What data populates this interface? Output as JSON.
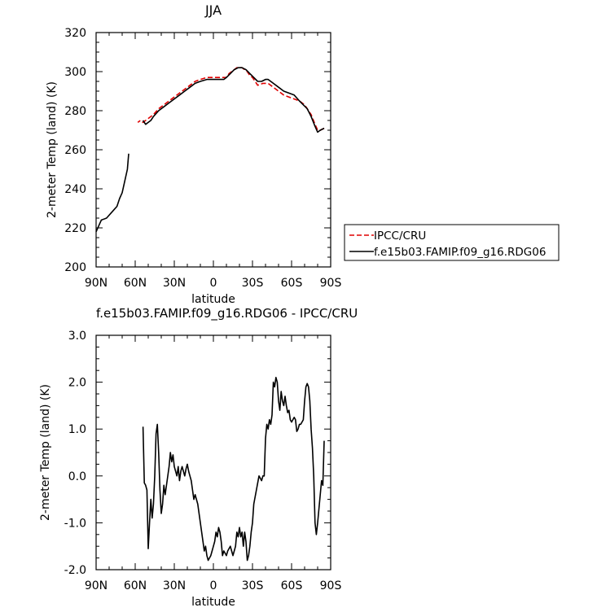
{
  "chart_data": [
    {
      "type": "line",
      "title": "JJA",
      "xlabel": "latitude",
      "ylabel": "2-meter Temp (land) (K)",
      "xlim": [
        90,
        -90
      ],
      "ylim": [
        200,
        320
      ],
      "xticks": [
        90,
        60,
        30,
        0,
        -30,
        -60,
        -90
      ],
      "xtick_labels": [
        "90N",
        "60N",
        "30N",
        "0",
        "30S",
        "60S",
        "90S"
      ],
      "yticks": [
        200,
        220,
        240,
        260,
        280,
        300,
        320
      ],
      "ytick_labels": [
        "200",
        "220",
        "240",
        "260",
        "280",
        "300",
        "320"
      ],
      "legend": {
        "placement": "outside-right"
      },
      "series": [
        {
          "name": "IPCC/CRU",
          "color": "#e00000",
          "dash": "dashed",
          "segments": [
            [
              [
                -85,
                271
              ],
              [
                -82,
                270
              ],
              [
                -80,
                270
              ],
              [
                -78,
                273
              ],
              [
                -75,
                278
              ],
              [
                -72,
                281
              ],
              [
                -70,
                283
              ],
              [
                -66,
                285
              ],
              [
                -62,
                286
              ],
              [
                -58,
                287
              ],
              [
                -54,
                288
              ],
              [
                -50,
                290
              ],
              [
                -46,
                292
              ],
              [
                -42,
                294
              ],
              [
                -38,
                294
              ],
              [
                -34,
                293
              ],
              [
                -32,
                295
              ],
              [
                -30,
                297
              ],
              [
                -28,
                298
              ],
              [
                -26,
                300
              ],
              [
                -24,
                301
              ],
              [
                -22,
                302
              ],
              [
                -20,
                302
              ],
              [
                -18,
                302
              ],
              [
                -16,
                301
              ],
              [
                -14,
                300
              ],
              [
                -12,
                299
              ],
              [
                -10,
                297
              ],
              [
                -8,
                297
              ],
              [
                -4,
                297
              ],
              [
                0,
                297
              ],
              [
                5,
                297
              ],
              [
                10,
                296
              ],
              [
                14,
                295
              ],
              [
                18,
                293
              ],
              [
                22,
                291
              ],
              [
                26,
                289
              ],
              [
                30,
                287
              ],
              [
                34,
                285
              ],
              [
                38,
                283
              ],
              [
                42,
                281
              ],
              [
                46,
                278
              ],
              [
                50,
                276
              ],
              [
                52,
                275
              ],
              [
                54,
                274
              ],
              [
                56,
                275
              ],
              [
                58,
                274
              ]
            ]
          ]
        },
        {
          "name": "f.e15b03.FAMIP.f09_g16.RDG06",
          "color": "#000000",
          "dash": "solid",
          "segments": [
            [
              [
                -85,
                271
              ],
              [
                -82,
                270
              ],
              [
                -80,
                269
              ],
              [
                -78,
                272
              ],
              [
                -75,
                277
              ],
              [
                -72,
                281
              ],
              [
                -69,
                283
              ],
              [
                -66,
                285
              ],
              [
                -62,
                288
              ],
              [
                -58,
                289
              ],
              [
                -54,
                290
              ],
              [
                -50,
                292
              ],
              [
                -46,
                294
              ],
              [
                -42,
                296
              ],
              [
                -40,
                296
              ],
              [
                -37,
                295
              ],
              [
                -34,
                295
              ],
              [
                -31,
                297
              ],
              [
                -28,
                299
              ],
              [
                -25,
                301
              ],
              [
                -22,
                302
              ],
              [
                -19,
                302
              ],
              [
                -16,
                301
              ],
              [
                -13,
                299
              ],
              [
                -10,
                297
              ],
              [
                -8,
                296
              ],
              [
                -5,
                296
              ],
              [
                0,
                296
              ],
              [
                5,
                296
              ],
              [
                10,
                295
              ],
              [
                14,
                294
              ],
              [
                18,
                292
              ],
              [
                22,
                290
              ],
              [
                26,
                288
              ],
              [
                30,
                286
              ],
              [
                34,
                284
              ],
              [
                38,
                282
              ],
              [
                42,
                280
              ],
              [
                46,
                277
              ],
              [
                48,
                275
              ],
              [
                50,
                274
              ],
              [
                52,
                273
              ],
              [
                54,
                275
              ]
            ],
            [
              [
                65,
                258
              ],
              [
                66,
                250
              ],
              [
                68,
                244
              ],
              [
                70,
                238
              ],
              [
                72,
                235
              ],
              [
                74,
                231
              ],
              [
                78,
                228
              ],
              [
                82,
                225
              ],
              [
                86,
                224
              ],
              [
                88,
                221
              ],
              [
                90,
                218
              ]
            ]
          ]
        }
      ]
    },
    {
      "type": "line",
      "title": "f.e15b03.FAMIP.f09_g16.RDG06 - IPCC/CRU",
      "xlabel": "latitude",
      "ylabel": "2-meter Temp (land) (K)",
      "xlim": [
        90,
        -90
      ],
      "ylim": [
        -2.0,
        3.0
      ],
      "xticks": [
        90,
        60,
        30,
        0,
        -30,
        -60,
        -90
      ],
      "xtick_labels": [
        "90N",
        "60N",
        "30N",
        "0",
        "30S",
        "60S",
        "90S"
      ],
      "yticks": [
        -2.0,
        -1.0,
        0.0,
        1.0,
        2.0,
        3.0
      ],
      "ytick_labels": [
        "-2.0",
        "-1.0",
        "0.0",
        "1.0",
        "2.0",
        "3.0"
      ],
      "series": [
        {
          "color": "#000000",
          "dash": "solid",
          "segments": [
            [
              [
                -85,
                0.75
              ],
              [
                -84,
                -0.2
              ],
              [
                -83,
                -0.1
              ],
              [
                -82,
                -0.4
              ],
              [
                -81,
                -0.7
              ],
              [
                -80,
                -1.0
              ],
              [
                -79,
                -1.25
              ],
              [
                -78,
                -1.0
              ],
              [
                -77,
                0.0
              ],
              [
                -76,
                0.6
              ],
              [
                -75,
                1.0
              ],
              [
                -74,
                1.6
              ],
              [
                -73,
                1.9
              ],
              [
                -72,
                1.97
              ],
              [
                -71,
                1.9
              ],
              [
                -70,
                1.6
              ],
              [
                -69,
                1.2
              ],
              [
                -68,
                1.15
              ],
              [
                -67,
                1.1
              ],
              [
                -66,
                1.1
              ],
              [
                -65,
                1.0
              ],
              [
                -64,
                0.95
              ],
              [
                -63,
                1.2
              ],
              [
                -62,
                1.25
              ],
              [
                -61,
                1.2
              ],
              [
                -60,
                1.15
              ],
              [
                -59,
                1.2
              ],
              [
                -58,
                1.4
              ],
              [
                -57,
                1.35
              ],
              [
                -56,
                1.5
              ],
              [
                -55,
                1.7
              ],
              [
                -54,
                1.5
              ],
              [
                -53,
                1.6
              ],
              [
                -52,
                1.8
              ],
              [
                -51,
                1.4
              ],
              [
                -50,
                1.6
              ],
              [
                -49,
                2.0
              ],
              [
                -48,
                2.1
              ],
              [
                -47,
                1.9
              ],
              [
                -46,
                2.0
              ],
              [
                -45,
                1.3
              ],
              [
                -44,
                1.1
              ],
              [
                -43,
                1.2
              ],
              [
                -42,
                1.0
              ],
              [
                -41,
                1.1
              ],
              [
                -40,
                0.8
              ],
              [
                -39,
                0.0
              ],
              [
                -38,
                0.0
              ],
              [
                -37,
                -0.1
              ],
              [
                -35,
                0.0
              ],
              [
                -33,
                -0.3
              ],
              [
                -31,
                -0.6
              ],
              [
                -30,
                -1.0
              ],
              [
                -29,
                -1.2
              ],
              [
                -28,
                -1.5
              ],
              [
                -27,
                -1.7
              ],
              [
                -26,
                -1.8
              ],
              [
                -25,
                -1.4
              ],
              [
                -24,
                -1.2
              ],
              [
                -23,
                -1.5
              ],
              [
                -22,
                -1.2
              ],
              [
                -21,
                -1.3
              ],
              [
                -20,
                -1.1
              ],
              [
                -19,
                -1.3
              ],
              [
                -18,
                -1.2
              ],
              [
                -17,
                -1.5
              ],
              [
                -16,
                -1.6
              ],
              [
                -15,
                -1.7
              ],
              [
                -14,
                -1.6
              ],
              [
                -13,
                -1.5
              ],
              [
                -12,
                -1.55
              ],
              [
                -11,
                -1.6
              ],
              [
                -10,
                -1.7
              ],
              [
                -9,
                -1.65
              ],
              [
                -8,
                -1.6
              ],
              [
                -7,
                -1.7
              ],
              [
                -6,
                -1.4
              ],
              [
                -5,
                -1.2
              ],
              [
                -4,
                -1.1
              ],
              [
                -3,
                -1.3
              ],
              [
                -2,
                -1.2
              ],
              [
                -1,
                -1.4
              ],
              [
                0,
                -1.5
              ],
              [
                1,
                -1.6
              ],
              [
                2,
                -1.7
              ],
              [
                3,
                -1.75
              ],
              [
                4,
                -1.8
              ],
              [
                5,
                -1.7
              ],
              [
                6,
                -1.5
              ],
              [
                7,
                -1.6
              ],
              [
                8,
                -1.4
              ],
              [
                9,
                -1.2
              ],
              [
                10,
                -1.0
              ],
              [
                11,
                -0.8
              ],
              [
                12,
                -0.6
              ],
              [
                13,
                -0.5
              ],
              [
                14,
                -0.4
              ],
              [
                15,
                -0.5
              ],
              [
                16,
                -0.3
              ],
              [
                17,
                -0.1
              ],
              [
                18,
                0.0
              ],
              [
                19,
                0.1
              ],
              [
                20,
                0.25
              ],
              [
                21,
                0.15
              ],
              [
                22,
                0.0
              ],
              [
                23,
                0.1
              ],
              [
                24,
                0.2
              ],
              [
                25,
                0.1
              ],
              [
                26,
                -0.1
              ],
              [
                27,
                0.2
              ],
              [
                28,
                0.0
              ],
              [
                29,
                0.1
              ],
              [
                30,
                0.2
              ],
              [
                31,
                0.45
              ],
              [
                32,
                0.3
              ],
              [
                33,
                0.5
              ],
              [
                34,
                0.2
              ],
              [
                35,
                0.0
              ],
              [
                36,
                -0.2
              ],
              [
                37,
                -0.4
              ],
              [
                38,
                -0.2
              ],
              [
                39,
                -0.6
              ],
              [
                40,
                -0.8
              ],
              [
                41,
                -0.3
              ],
              [
                42,
                0.5
              ],
              [
                43,
                1.1
              ],
              [
                44,
                0.9
              ],
              [
                45,
                0.0
              ],
              [
                46,
                -0.6
              ],
              [
                47,
                -0.9
              ],
              [
                48,
                -0.5
              ],
              [
                49,
                -1.0
              ],
              [
                50,
                -1.55
              ],
              [
                51,
                -0.3
              ],
              [
                52,
                -0.2
              ],
              [
                53,
                -0.15
              ],
              [
                54,
                1.05
              ]
            ]
          ]
        }
      ]
    }
  ]
}
